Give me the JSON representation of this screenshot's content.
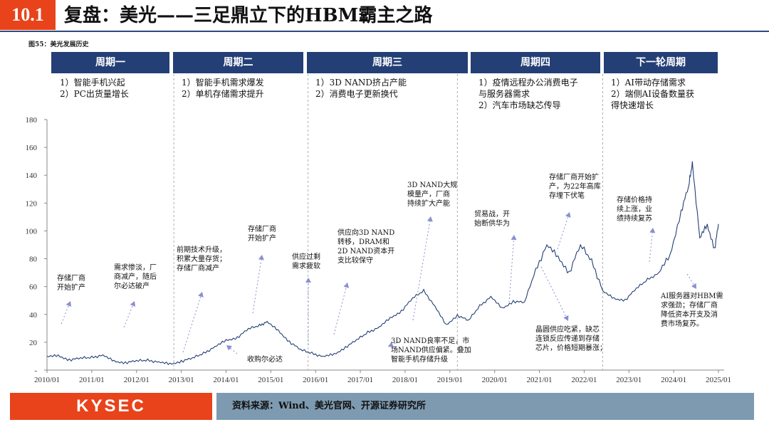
{
  "header": {
    "number": "10.1",
    "title": "复盘：美光——三足鼎立下的HBM霸主之路"
  },
  "figure_caption": "图55：美光发展历史",
  "phases": [
    {
      "label": "周期一",
      "desc": "1）智能手机兴起\n2）PC出货量增长"
    },
    {
      "label": "周期二",
      "desc": "1）智能手机需求爆发\n2）单机存储需求提升"
    },
    {
      "label": "周期三",
      "desc": "1）3D NAND挤占产能\n2）消费电子更新换代"
    },
    {
      "label": "周期四",
      "desc": "1）疫情远程办公消费电子\n与服务器需求\n2）汽车市场缺芯传导"
    },
    {
      "label": "下一轮周期",
      "desc": "1）AI带动存储需求\n2）端侧AI设备数量获\n得快速增长"
    }
  ],
  "annotations": [
    "存储厂商\n开始扩产",
    "需求惨淡，厂\n商减产，随后\n尔必达破产",
    "前期技术升级，\n积累大量存货；\n存储厂商减产",
    "存储厂商\n开始扩产",
    "收购尔必达",
    "供应过剩\n需求疲软",
    "供应向3D NAND\n转移，DRAM和\n2D NAND资本开\n支比较保守",
    "3D NAND大规\n模量产，厂商\n持续扩大产能",
    "3D NAND良率不足，市\n场NAND供应偏紧。叠加\n智能手机存储升级",
    "贸易战，开\n始断供华为",
    "存储厂商开始扩\n产，为22年高库\n存埋下伏笔",
    "晶圆供应吃紧，缺芯\n连锁反应传递到存储\n芯片，价格短期暴涨；",
    "存储价格持\n续上涨，业\n绩持续复苏",
    "AI服务器对HBM需\n求强劲；存储厂商\n降低资本开支及消\n费市场复苏。"
  ],
  "footer": {
    "logo": "KYSEC",
    "source": "资料来源：Wind、美光官网、开源证券研究所"
  },
  "colors": {
    "accent": "#e8431b",
    "navy": "#243f75",
    "line": "#243f75",
    "footer_bar": "#7d9ab0"
  },
  "chart_data": {
    "type": "line",
    "title": "",
    "xlabel": "",
    "ylabel": "",
    "ylim": [
      0,
      180
    ],
    "yticks": [
      0,
      20,
      40,
      60,
      80,
      100,
      120,
      140,
      160,
      180
    ],
    "ytick_labels": [
      "-",
      "20",
      "40",
      "60",
      "80",
      "100",
      "120",
      "140",
      "160",
      "180"
    ],
    "xticks": [
      "2010/01",
      "2011/01",
      "2012/01",
      "2013/01",
      "2014/01",
      "2015/01",
      "2016/01",
      "2017/01",
      "2018/01",
      "2019/01",
      "2020/01",
      "2021/01",
      "2022/01",
      "2023/01",
      "2024/01",
      "2025/01"
    ],
    "phase_boundaries": [
      "2012/11",
      "2015/11",
      "2019/03",
      "2022/06"
    ],
    "series": [
      {
        "name": "",
        "points": [
          [
            "2010/01",
            10
          ],
          [
            "2010/04",
            11
          ],
          [
            "2010/07",
            8
          ],
          [
            "2010/10",
            9
          ],
          [
            "2011/01",
            10
          ],
          [
            "2011/04",
            11
          ],
          [
            "2011/07",
            7
          ],
          [
            "2011/10",
            6
          ],
          [
            "2012/01",
            7
          ],
          [
            "2012/04",
            8
          ],
          [
            "2012/07",
            6
          ],
          [
            "2012/10",
            5
          ],
          [
            "2013/01",
            7
          ],
          [
            "2013/04",
            9
          ],
          [
            "2013/07",
            13
          ],
          [
            "2013/10",
            17
          ],
          [
            "2014/01",
            22
          ],
          [
            "2014/04",
            24
          ],
          [
            "2014/07",
            30
          ],
          [
            "2014/10",
            33
          ],
          [
            "2014/12",
            35
          ],
          [
            "2015/03",
            29
          ],
          [
            "2015/06",
            21
          ],
          [
            "2015/09",
            15
          ],
          [
            "2015/12",
            13
          ],
          [
            "2016/03",
            10
          ],
          [
            "2016/06",
            12
          ],
          [
            "2016/09",
            17
          ],
          [
            "2016/12",
            22
          ],
          [
            "2017/03",
            28
          ],
          [
            "2017/06",
            31
          ],
          [
            "2017/09",
            38
          ],
          [
            "2017/12",
            43
          ],
          [
            "2018/03",
            52
          ],
          [
            "2018/06",
            58
          ],
          [
            "2018/09",
            46
          ],
          [
            "2018/12",
            33
          ],
          [
            "2019/03",
            40
          ],
          [
            "2019/06",
            36
          ],
          [
            "2019/09",
            47
          ],
          [
            "2019/12",
            53
          ],
          [
            "2020/03",
            45
          ],
          [
            "2020/06",
            50
          ],
          [
            "2020/09",
            49
          ],
          [
            "2020/12",
            73
          ],
          [
            "2021/03",
            90
          ],
          [
            "2021/06",
            82
          ],
          [
            "2021/09",
            71
          ],
          [
            "2021/12",
            90
          ],
          [
            "2022/03",
            80
          ],
          [
            "2022/06",
            57
          ],
          [
            "2022/09",
            52
          ],
          [
            "2022/12",
            51
          ],
          [
            "2023/03",
            59
          ],
          [
            "2023/06",
            66
          ],
          [
            "2023/09",
            70
          ],
          [
            "2023/12",
            83
          ],
          [
            "2024/03",
            115
          ],
          [
            "2024/05",
            132
          ],
          [
            "2024/06",
            150
          ],
          [
            "2024/08",
            95
          ],
          [
            "2024/10",
            105
          ],
          [
            "2024/12",
            88
          ],
          [
            "2025/01",
            105
          ]
        ]
      }
    ]
  }
}
